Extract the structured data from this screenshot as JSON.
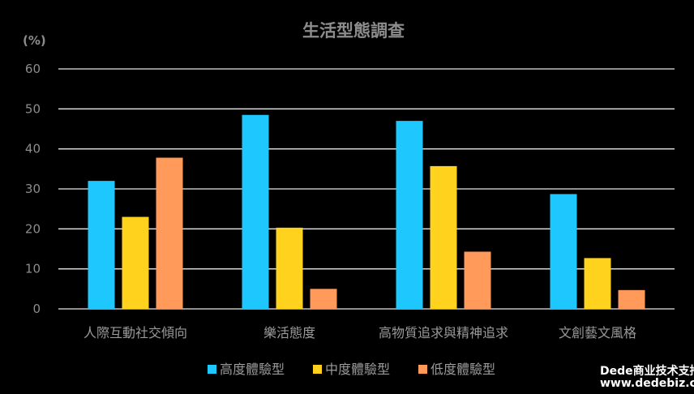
{
  "chart_data": {
    "type": "bar",
    "title": "生活型態調查",
    "ylabel": "(%)",
    "xlabel": "",
    "ylim": [
      0,
      60
    ],
    "yticks": [
      0,
      10,
      20,
      30,
      40,
      50,
      60
    ],
    "grid": true,
    "legend_position": "bottom",
    "categories": [
      "人際互動社交傾向",
      "樂活態度",
      "高物質追求與精神追求",
      "文創藝文風格"
    ],
    "series": [
      {
        "name": "高度體驗型",
        "color": "#1ec8ff",
        "values": [
          32,
          48.5,
          47,
          28.7
        ]
      },
      {
        "name": "中度體驗型",
        "color": "#ffd21e",
        "values": [
          23,
          20.3,
          35.7,
          12.7
        ]
      },
      {
        "name": "低度體驗型",
        "color": "#ff9a5a",
        "values": [
          37.8,
          5,
          14.3,
          4.7
        ]
      }
    ]
  },
  "watermark": {
    "line1": "Dede商业技术支持",
    "line2": "www.dedebiz.com"
  }
}
